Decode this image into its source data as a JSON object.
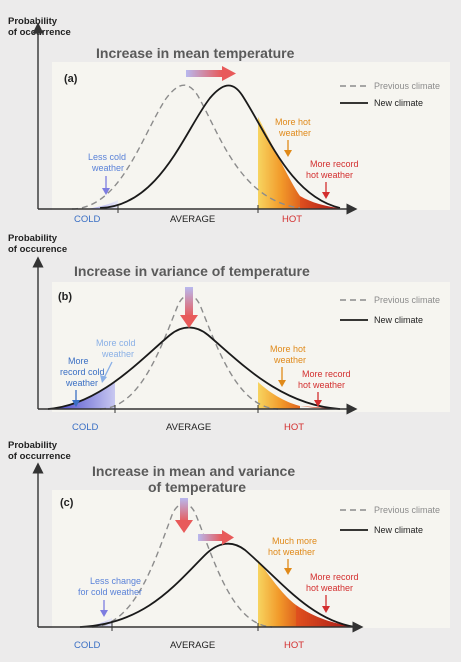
{
  "colors": {
    "background": "#ecebeb",
    "panel": "#f6f5f0",
    "axis": "#333333",
    "previous_climate": "#8c8c8c",
    "new_climate": "#1a1a1a",
    "cold_label": "#3a6fc4",
    "hot_label": "#d32f2f",
    "title": "#555555",
    "cold_fill": "#5b5bd4",
    "hot_fill_light": "#f7c84a",
    "hot_fill_mid": "#f29a2a",
    "hot_fill_dark": "#c8281c",
    "arrow_cold": "#9a9ae6",
    "arrow_hot": "#e85a5a",
    "note_cold": "#5a82d8",
    "note_hot": "#e08a1a",
    "note_record_hot": "#d32f2f"
  },
  "panels": [
    {
      "y_axis_label_line1": "Probability",
      "y_axis_label_line2": "of occurrence",
      "title_line1": "Increase in mean temperature",
      "title_line2": "",
      "panel_label": "(a)",
      "legend": {
        "previous": "Previous climate",
        "new": "New climate"
      },
      "x_labels": {
        "cold": "COLD",
        "average": "AVERAGE",
        "hot": "HOT"
      },
      "annotations": {
        "cold": [
          "Less cold",
          "weather"
        ],
        "cold_record": [],
        "hot": [
          "More hot",
          "weather"
        ],
        "hot_record": [
          "More record",
          "hot weather"
        ]
      },
      "shift_arrow": "right"
    },
    {
      "y_axis_label_line1": "Probability",
      "y_axis_label_line2": "of occurence",
      "title_line1": "Increase in variance of temperature",
      "title_line2": "",
      "panel_label": "(b)",
      "legend": {
        "previous": "Previous climate",
        "new": "New climate"
      },
      "x_labels": {
        "cold": "COLD",
        "average": "AVERAGE",
        "hot": "HOT"
      },
      "annotations": {
        "cold": [
          "More cold",
          "weather"
        ],
        "cold_record": [
          "More",
          "record cold",
          "weather"
        ],
        "hot": [
          "More hot",
          "weather"
        ],
        "hot_record": [
          "More record",
          "hot weather"
        ]
      },
      "shift_arrow": "down"
    },
    {
      "y_axis_label_line1": "Probability",
      "y_axis_label_line2": "of occurrence",
      "title_line1": "Increase in mean and variance",
      "title_line2": "of temperature",
      "panel_label": "(c)",
      "legend": {
        "previous": "Previous climate",
        "new": "New climate"
      },
      "x_labels": {
        "cold": "COLD",
        "average": "AVERAGE",
        "hot": "HOT"
      },
      "annotations": {
        "cold": [
          "Less change",
          "for cold weather"
        ],
        "cold_record": [],
        "hot": [
          "Much more",
          "hot weather"
        ],
        "hot_record": [
          "More record",
          "hot weather"
        ]
      },
      "shift_arrow": "down-right"
    }
  ]
}
